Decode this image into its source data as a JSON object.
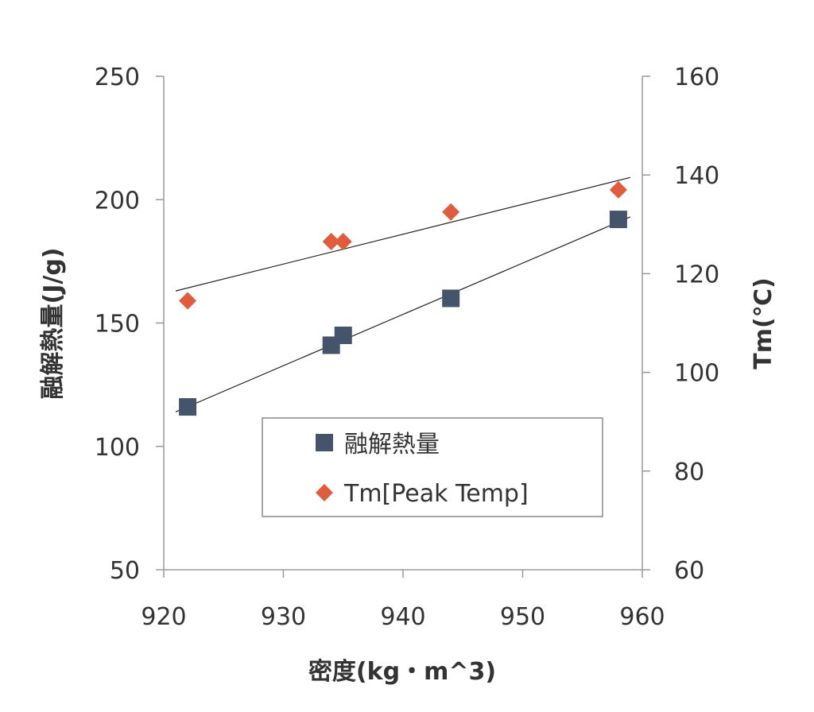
{
  "chart_data": {
    "type": "scatter",
    "x": [
      922,
      934,
      935,
      944,
      958
    ],
    "xlabel": "密度(kg・m^3)",
    "xlim": [
      920,
      960
    ],
    "xticks": [
      920,
      930,
      940,
      950,
      960
    ],
    "ylabel": "融解熱量(J/g)",
    "ylim": [
      50,
      250
    ],
    "yticks": [
      50,
      100,
      150,
      200,
      250
    ],
    "y2label": "Tm(℃)",
    "y2lim": [
      60,
      160
    ],
    "y2ticks": [
      60,
      80,
      100,
      120,
      140,
      160
    ],
    "grid": false,
    "legend_position": "center-right",
    "series": [
      {
        "name": "融解熱量",
        "axis": "left",
        "marker": "square",
        "color": "#44546a",
        "values": [
          116,
          141,
          145,
          160,
          192
        ],
        "trendline": {
          "x": [
            921,
            959
          ],
          "y": [
            114,
            193
          ]
        }
      },
      {
        "name": "Tm[Peak Temp]",
        "axis": "right",
        "marker": "diamond",
        "color": "#e15c3c",
        "values": [
          114.5,
          126.5,
          126.5,
          132.5,
          137
        ],
        "trendline": {
          "x": [
            921,
            959
          ],
          "y": [
            116.5,
            139.5
          ]
        }
      }
    ]
  }
}
